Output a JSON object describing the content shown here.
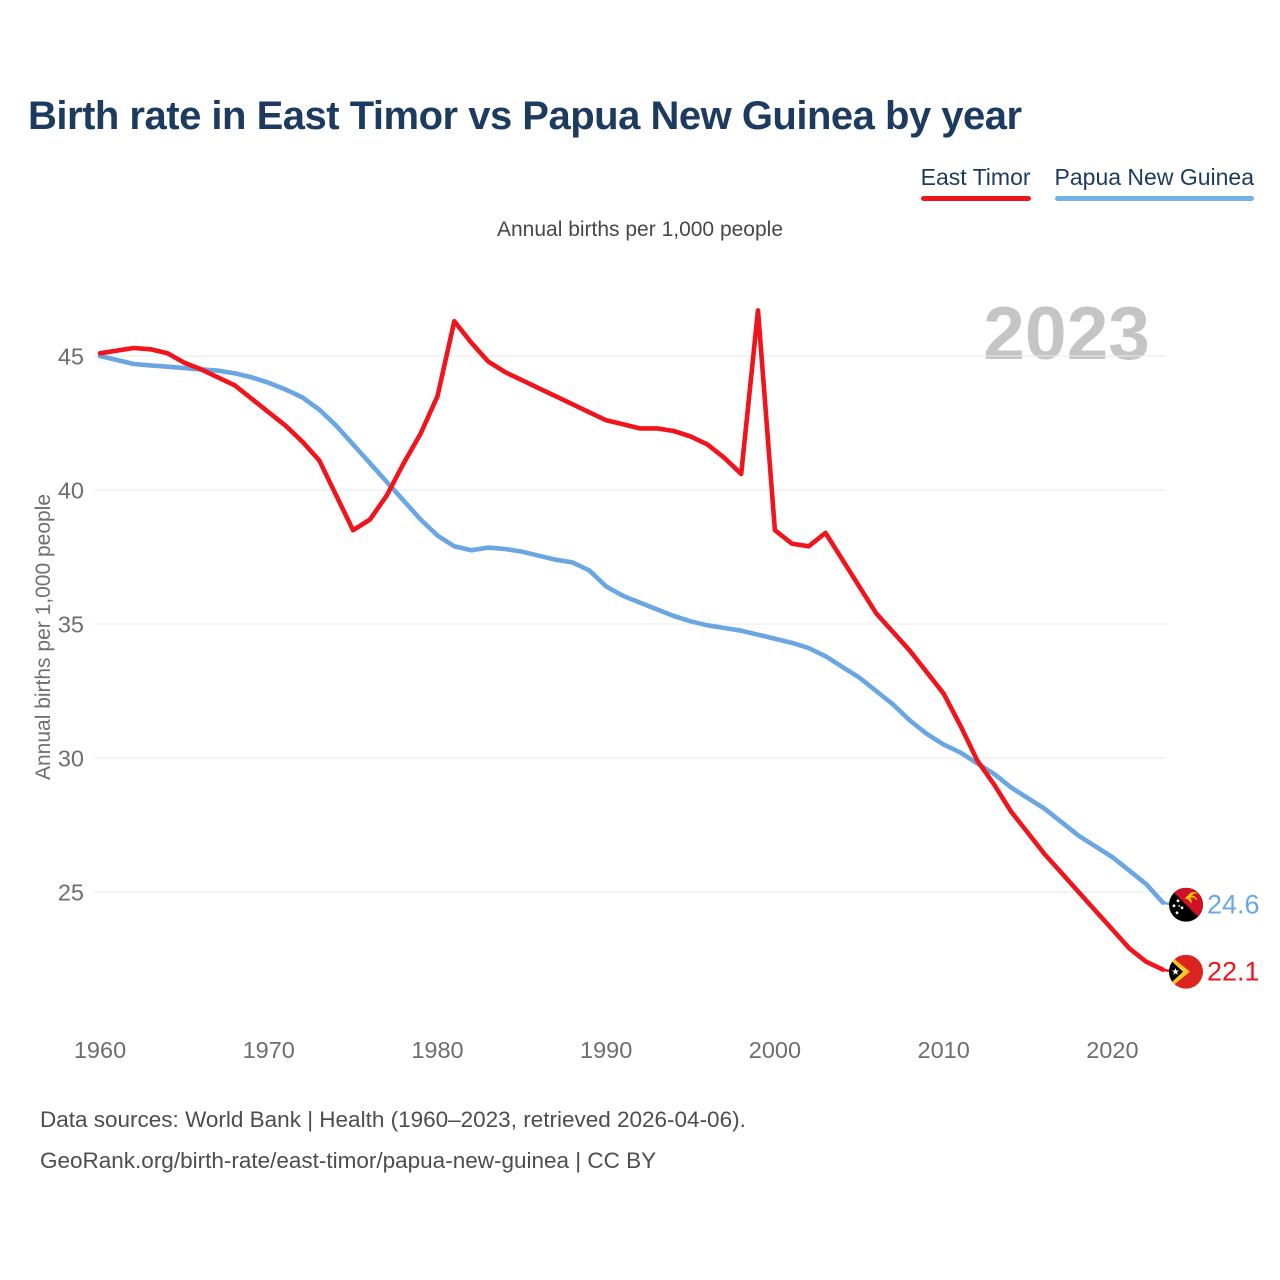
{
  "page": {
    "title": "Birth rate in East Timor vs Papua New Guinea by year",
    "subtitle": "Annual births per 1,000 people",
    "watermark": "2023",
    "footer_line1": "Data sources: World Bank | Health (1960–2023, retrieved 2026-04-06).",
    "footer_line2": "GeoRank.org/birth-rate/east-timor/papua-new-guinea | CC BY"
  },
  "legend": [
    {
      "label": "East Timor",
      "color": "#f2141d"
    },
    {
      "label": "Papua New Guinea",
      "color": "#74b0e8"
    }
  ],
  "colors": {
    "title_navy": "#1d3a5f",
    "east_timor_red": "#f2141d",
    "papua_new_guinea_blue": "#6aa7e2",
    "gridline": "#e9e9e9",
    "tick_label": "#6e6e6e",
    "watermark_gray": "#c5c5c5",
    "footer_gray": "#4d4d4d"
  },
  "icons": {
    "east_timor_flag": "east-timor-flag-icon",
    "papua_new_guinea_flag": "papua-new-guinea-flag-icon"
  },
  "chart_data": {
    "type": "line",
    "title": "Birth rate in East Timor vs Papua New Guinea by year",
    "ylabel": "Annual births per 1,000 people",
    "xlabel": "",
    "legend_position": "top-right",
    "grid": "horizontal-only",
    "ylim": [
      21.5,
      47.5
    ],
    "yticks": [
      25,
      30,
      35,
      40,
      45
    ],
    "xticks": [
      1960,
      1970,
      1980,
      1990,
      2000,
      2010,
      2020
    ],
    "x": [
      1960,
      1961,
      1962,
      1963,
      1964,
      1965,
      1966,
      1967,
      1968,
      1969,
      1970,
      1971,
      1972,
      1973,
      1974,
      1975,
      1976,
      1977,
      1978,
      1979,
      1980,
      1981,
      1982,
      1983,
      1984,
      1985,
      1986,
      1987,
      1988,
      1989,
      1990,
      1991,
      1992,
      1993,
      1994,
      1995,
      1996,
      1997,
      1998,
      1999,
      2000,
      2001,
      2002,
      2003,
      2004,
      2005,
      2006,
      2007,
      2008,
      2009,
      2010,
      2011,
      2012,
      2013,
      2014,
      2015,
      2016,
      2017,
      2018,
      2019,
      2020,
      2021,
      2022,
      2023
    ],
    "series": [
      {
        "name": "East Timor",
        "color": "#f2141d",
        "end_label": "22.1",
        "end_value": 22.1,
        "flag_icon": "east-timor-flag-icon",
        "values": [
          45.1,
          45.2,
          45.3,
          45.25,
          45.1,
          44.75,
          44.5,
          44.2,
          43.9,
          43.4,
          42.9,
          42.4,
          41.8,
          41.1,
          39.8,
          38.5,
          38.9,
          39.8,
          41.0,
          42.1,
          43.5,
          46.3,
          45.5,
          44.8,
          44.4,
          44.1,
          43.8,
          43.5,
          43.2,
          42.9,
          42.6,
          42.45,
          42.3,
          42.3,
          42.2,
          42.0,
          41.7,
          41.2,
          40.6,
          46.7,
          38.5,
          38.0,
          37.9,
          38.4,
          37.4,
          36.4,
          35.4,
          34.7,
          34.0,
          33.2,
          32.4,
          31.2,
          29.9,
          29.0,
          28.0,
          27.2,
          26.4,
          25.7,
          25.0,
          24.3,
          23.6,
          22.9,
          22.4,
          22.1
        ]
      },
      {
        "name": "Papua New Guinea",
        "color": "#6aa7e2",
        "end_label": "24.6",
        "end_value": 24.6,
        "flag_icon": "papua-new-guinea-flag-icon",
        "values": [
          45.0,
          44.85,
          44.7,
          44.65,
          44.6,
          44.55,
          44.5,
          44.45,
          44.35,
          44.2,
          44.0,
          43.75,
          43.45,
          43.0,
          42.4,
          41.7,
          41.0,
          40.3,
          39.6,
          38.9,
          38.3,
          37.9,
          37.75,
          37.85,
          37.8,
          37.7,
          37.55,
          37.4,
          37.3,
          37.0,
          36.4,
          36.05,
          35.8,
          35.55,
          35.3,
          35.1,
          34.95,
          34.85,
          34.75,
          34.6,
          34.45,
          34.3,
          34.1,
          33.8,
          33.4,
          33.0,
          32.5,
          32.0,
          31.4,
          30.9,
          30.5,
          30.2,
          29.8,
          29.4,
          28.9,
          28.5,
          28.1,
          27.6,
          27.1,
          26.7,
          26.3,
          25.8,
          25.3,
          24.6
        ]
      }
    ]
  }
}
